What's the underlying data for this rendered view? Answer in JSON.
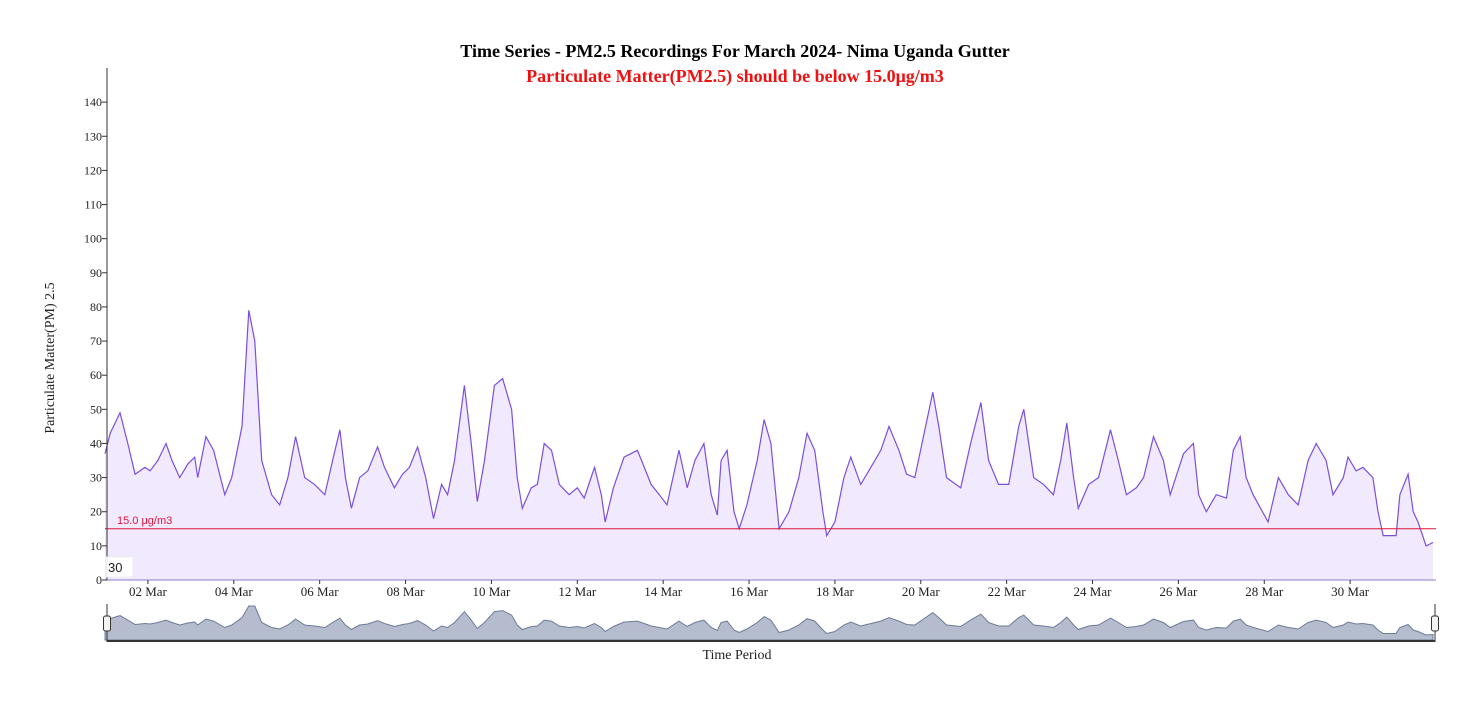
{
  "chart_data": {
    "type": "area",
    "title": "Time Series - PM2.5 Recordings For March 2024- Nima Uganda Gutter",
    "subtitle": "Particulate Matter(PM2.5) should be below 15.0μg/m3",
    "x_label": "Time Period",
    "y_label": "Particulate Matter(PM) 2.5",
    "zoom_value": "30",
    "threshold": {
      "value": 15,
      "label": "15.0 μg/m3",
      "color": "#e0143c"
    },
    "xlim": [
      1,
      32
    ],
    "xticks": [
      {
        "value": 2,
        "label": "02 Mar"
      },
      {
        "value": 4,
        "label": "04 Mar"
      },
      {
        "value": 6,
        "label": "06 Mar"
      },
      {
        "value": 8,
        "label": "08 Mar"
      },
      {
        "value": 10,
        "label": "10 Mar"
      },
      {
        "value": 12,
        "label": "12 Mar"
      },
      {
        "value": 14,
        "label": "14 Mar"
      },
      {
        "value": 16,
        "label": "16 Mar"
      },
      {
        "value": 18,
        "label": "18 Mar"
      },
      {
        "value": 20,
        "label": "20 Mar"
      },
      {
        "value": 22,
        "label": "22 Mar"
      },
      {
        "value": 24,
        "label": "24 Mar"
      },
      {
        "value": 26,
        "label": "26 Mar"
      },
      {
        "value": 28,
        "label": "28 Mar"
      },
      {
        "value": 30,
        "label": "30 Mar"
      }
    ],
    "ylim": [
      0,
      150
    ],
    "yticks": [
      0,
      10,
      20,
      30,
      40,
      50,
      60,
      70,
      80,
      90,
      100,
      110,
      120,
      130,
      140
    ],
    "x": [
      1.0,
      1.12,
      1.35,
      1.53,
      1.7,
      1.93,
      2.05,
      2.23,
      2.42,
      2.56,
      2.74,
      2.93,
      3.09,
      3.16,
      3.35,
      3.53,
      3.79,
      3.95,
      4.19,
      4.35,
      4.49,
      4.65,
      4.88,
      5.07,
      5.26,
      5.44,
      5.65,
      5.88,
      6.12,
      6.3,
      6.47,
      6.6,
      6.74,
      6.93,
      7.12,
      7.35,
      7.51,
      7.74,
      7.93,
      8.09,
      8.28,
      8.47,
      8.65,
      8.84,
      8.98,
      9.14,
      9.37,
      9.53,
      9.67,
      9.84,
      10.07,
      10.26,
      10.47,
      10.6,
      10.72,
      10.93,
      11.07,
      11.23,
      11.4,
      11.58,
      11.81,
      12.0,
      12.16,
      12.4,
      12.56,
      12.65,
      12.84,
      13.09,
      13.4,
      13.56,
      13.72,
      13.91,
      14.09,
      14.28,
      14.37,
      14.56,
      14.74,
      14.95,
      15.12,
      15.26,
      15.35,
      15.49,
      15.65,
      15.77,
      15.95,
      16.19,
      16.35,
      16.51,
      16.7,
      16.93,
      17.16,
      17.35,
      17.53,
      17.72,
      17.81,
      18.0,
      18.21,
      18.37,
      18.6,
      18.79,
      19.07,
      19.26,
      19.49,
      19.67,
      19.86,
      20.28,
      20.42,
      20.6,
      20.93,
      21.16,
      21.4,
      21.58,
      21.81,
      22.05,
      22.28,
      22.4,
      22.63,
      22.86,
      23.09,
      23.26,
      23.4,
      23.56,
      23.67,
      23.91,
      24.14,
      24.42,
      24.6,
      24.79,
      25.02,
      25.19,
      25.42,
      25.65,
      25.81,
      26.12,
      26.35,
      26.47,
      26.65,
      26.88,
      27.12,
      27.28,
      27.44,
      27.58,
      27.74,
      28.09,
      28.33,
      28.56,
      28.79,
      29.02,
      29.21,
      29.44,
      29.6,
      29.84,
      29.95,
      30.14,
      30.3,
      30.53,
      30.65,
      30.77,
      31.07,
      31.16,
      31.35,
      31.47,
      31.58,
      31.77,
      31.93
    ],
    "series": [
      {
        "name": "PM2.5",
        "color": "#7b4fdc",
        "fill": "#f1e9fd",
        "values": [
          37,
          43,
          49,
          40,
          31,
          33,
          32,
          35,
          40,
          35,
          30,
          34,
          36,
          30,
          42,
          38,
          25,
          30,
          45,
          79,
          70,
          35,
          25,
          22,
          30,
          42,
          30,
          28,
          25,
          35,
          44,
          30,
          21,
          30,
          32,
          39,
          33,
          27,
          31,
          33,
          39,
          30,
          18,
          28,
          25,
          35,
          57,
          40,
          23,
          35,
          57,
          59,
          50,
          30,
          21,
          27,
          28,
          40,
          38,
          28,
          25,
          27,
          24,
          33,
          25,
          17,
          27,
          36,
          38,
          33,
          28,
          25,
          22,
          33,
          38,
          27,
          35,
          40,
          25,
          19,
          35,
          38,
          20,
          15,
          22,
          35,
          47,
          40,
          15,
          20,
          30,
          43,
          38,
          20,
          13,
          17,
          30,
          36,
          28,
          32,
          38,
          45,
          38,
          31,
          30,
          55,
          45,
          30,
          27,
          40,
          52,
          35,
          28,
          28,
          45,
          50,
          30,
          28,
          25,
          35,
          46,
          30,
          21,
          28,
          30,
          44,
          35,
          25,
          27,
          30,
          42,
          35,
          25,
          37,
          40,
          25,
          20,
          25,
          24,
          38,
          42,
          30,
          25,
          17,
          30,
          25,
          22,
          35,
          40,
          35,
          25,
          30,
          36,
          32,
          33,
          30,
          20,
          13,
          13,
          25,
          31,
          20,
          17,
          10,
          11
        ]
      }
    ],
    "grid": false
  }
}
